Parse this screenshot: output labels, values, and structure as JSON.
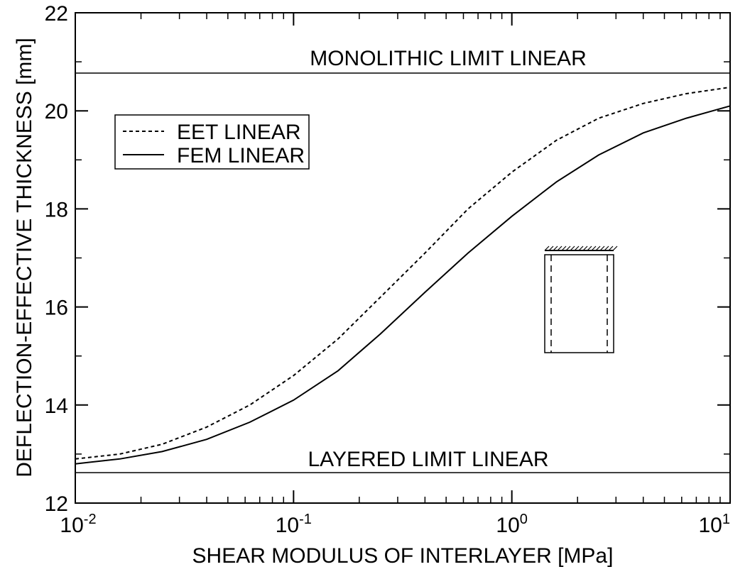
{
  "chart_data": {
    "type": "line",
    "xscale": "log",
    "xlim": [
      0.01,
      10
    ],
    "ylim": [
      12,
      22
    ],
    "xlabel": "SHEAR MODULUS OF INTERLAYER [MPa]",
    "ylabel": "DEFLECTION-EFFECTIVE THICKNESS [mm]",
    "grid": false,
    "legend_position": "top-left",
    "x_ticks": [
      {
        "base": "10",
        "exp": "-2",
        "value": 0.01
      },
      {
        "base": "10",
        "exp": "-1",
        "value": 0.1
      },
      {
        "base": "10",
        "exp": "0",
        "value": 1
      },
      {
        "base": "10",
        "exp": "1",
        "value": 10
      }
    ],
    "y_ticks": [
      {
        "label": "12",
        "value": 12
      },
      {
        "label": "14",
        "value": 14
      },
      {
        "label": "16",
        "value": 16
      },
      {
        "label": "18",
        "value": 18
      },
      {
        "label": "20",
        "value": 20
      },
      {
        "label": "22",
        "value": 22
      }
    ],
    "series": [
      {
        "name": "EET LINEAR",
        "style": "dashed",
        "x": [
          0.01,
          0.016,
          0.025,
          0.04,
          0.063,
          0.1,
          0.16,
          0.25,
          0.4,
          0.63,
          1.0,
          1.6,
          2.5,
          4.0,
          6.3,
          10
        ],
        "y": [
          12.9,
          13.0,
          13.2,
          13.55,
          14.0,
          14.6,
          15.35,
          16.2,
          17.1,
          18.0,
          18.75,
          19.4,
          19.85,
          20.15,
          20.35,
          20.48
        ]
      },
      {
        "name": "FEM LINEAR",
        "style": "solid",
        "x": [
          0.01,
          0.016,
          0.025,
          0.04,
          0.063,
          0.1,
          0.16,
          0.25,
          0.4,
          0.63,
          1.0,
          1.6,
          2.5,
          4.0,
          6.3,
          10
        ],
        "y": [
          12.8,
          12.9,
          13.05,
          13.3,
          13.65,
          14.1,
          14.7,
          15.45,
          16.3,
          17.1,
          17.85,
          18.55,
          19.1,
          19.55,
          19.85,
          20.1
        ]
      }
    ],
    "reference_lines": [
      {
        "label": "MONOLITHIC LIMIT LINEAR",
        "y": 20.77
      },
      {
        "label": "LAYERED LIMIT LINEAR",
        "y": 12.62
      }
    ]
  }
}
